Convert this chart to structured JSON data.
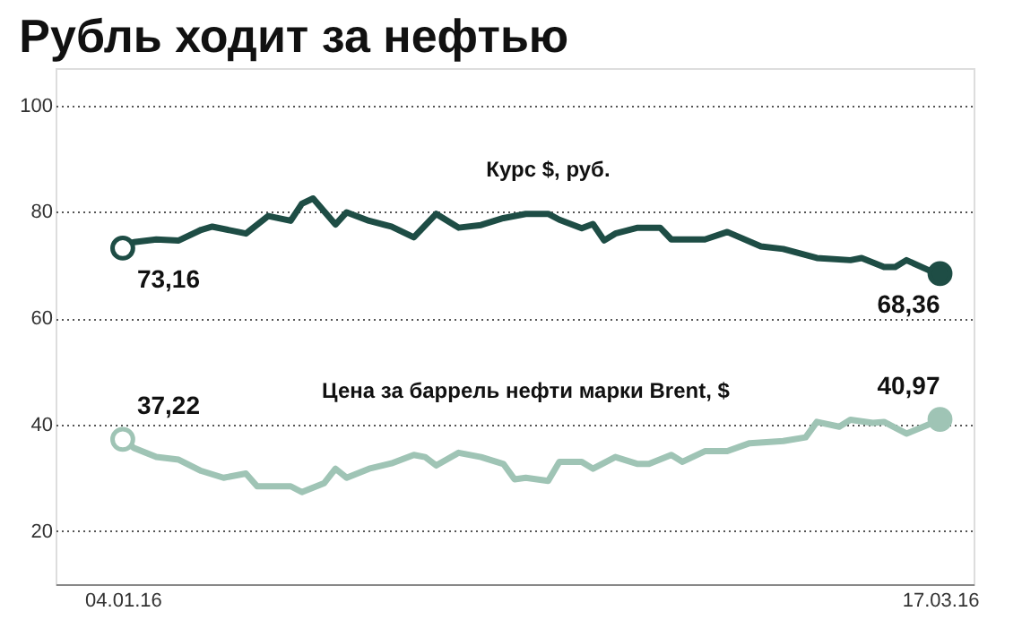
{
  "chart_data": {
    "type": "line",
    "title": "Рубль ходит за нефтью",
    "xlim": [
      "2015-12-29",
      "2016-03-20"
    ],
    "xticks": [
      {
        "value": "2016-01-04",
        "label": "04.01.16"
      },
      {
        "value": "2016-03-17",
        "label": "17.03.16"
      }
    ],
    "ylim": [
      10,
      107
    ],
    "yticks": [
      20,
      40,
      60,
      80,
      100
    ],
    "grid": "y",
    "line_style": "solid",
    "series": [
      {
        "name": "Курс $, руб.",
        "color": "#1e4d45",
        "x": [
          "2016-01-04",
          "2016-01-05",
          "2016-01-07",
          "2016-01-09",
          "2016-01-11",
          "2016-01-12",
          "2016-01-15",
          "2016-01-17",
          "2016-01-19",
          "2016-01-20",
          "2016-01-21",
          "2016-01-23",
          "2016-01-24",
          "2016-01-26",
          "2016-01-28",
          "2016-01-30",
          "2016-02-01",
          "2016-02-03",
          "2016-02-05",
          "2016-02-07",
          "2016-02-09",
          "2016-02-11",
          "2016-02-12",
          "2016-02-14",
          "2016-02-15",
          "2016-02-16",
          "2016-02-17",
          "2016-02-19",
          "2016-02-21",
          "2016-02-22",
          "2016-02-25",
          "2016-02-27",
          "2016-03-01",
          "2016-03-03",
          "2016-03-06",
          "2016-03-09",
          "2016-03-10",
          "2016-03-12",
          "2016-03-13",
          "2016-03-14",
          "2016-03-16",
          "2016-03-17"
        ],
        "values": [
          73.16,
          74.3,
          74.8,
          74.6,
          76.6,
          77.2,
          75.9,
          79.2,
          78.3,
          81.5,
          82.5,
          77.6,
          79.9,
          78.3,
          77.2,
          75.2,
          79.6,
          77.0,
          77.5,
          78.8,
          79.6,
          79.6,
          78.5,
          76.9,
          77.7,
          74.6,
          75.9,
          77.0,
          77.0,
          74.8,
          74.8,
          76.2,
          73.5,
          73.0,
          71.3,
          70.9,
          71.3,
          69.6,
          69.6,
          70.9,
          69.0,
          68.36
        ]
      },
      {
        "name": "Цена за баррель нефти марки Brent, $",
        "color": "#9fc4b5",
        "x": [
          "2016-01-04",
          "2016-01-05",
          "2016-01-07",
          "2016-01-09",
          "2016-01-11",
          "2016-01-13",
          "2016-01-15",
          "2016-01-16",
          "2016-01-19",
          "2016-01-20",
          "2016-01-22",
          "2016-01-23",
          "2016-01-24",
          "2016-01-26",
          "2016-01-28",
          "2016-01-30",
          "2016-01-31",
          "2016-02-01",
          "2016-02-03",
          "2016-02-05",
          "2016-02-07",
          "2016-02-08",
          "2016-02-09",
          "2016-02-11",
          "2016-02-12",
          "2016-02-14",
          "2016-02-15",
          "2016-02-17",
          "2016-02-19",
          "2016-02-20",
          "2016-02-22",
          "2016-02-23",
          "2016-02-25",
          "2016-02-27",
          "2016-02-29",
          "2016-03-03",
          "2016-03-05",
          "2016-03-06",
          "2016-03-08",
          "2016-03-09",
          "2016-03-11",
          "2016-03-12",
          "2016-03-14",
          "2016-03-16",
          "2016-03-17"
        ],
        "values": [
          37.22,
          35.6,
          33.9,
          33.4,
          31.3,
          30.0,
          30.8,
          28.4,
          28.4,
          27.3,
          29.0,
          31.7,
          30.0,
          31.7,
          32.7,
          34.3,
          33.9,
          32.3,
          34.7,
          33.9,
          32.6,
          29.7,
          30.0,
          29.4,
          33.0,
          33.0,
          31.7,
          33.9,
          32.6,
          32.6,
          34.3,
          33.0,
          35.0,
          35.0,
          36.5,
          36.9,
          37.6,
          40.5,
          39.6,
          40.9,
          40.3,
          40.5,
          38.3,
          40.0,
          40.97
        ]
      }
    ],
    "annotations": [
      {
        "text": "73,16",
        "x": "2016-01-04",
        "y": 73.16
      },
      {
        "text": "68,36",
        "x": "2016-03-17",
        "y": 68.36
      },
      {
        "text": "37,22",
        "x": "2016-01-04",
        "y": 37.22
      },
      {
        "text": "40,97",
        "x": "2016-03-17",
        "y": 40.97
      }
    ]
  }
}
